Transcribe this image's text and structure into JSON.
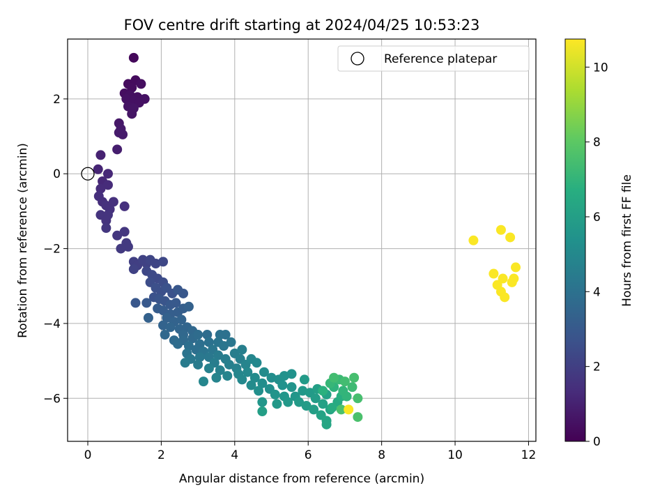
{
  "chart_data": {
    "type": "scatter",
    "title": "FOV centre drift starting at 2024/04/25 10:53:23",
    "xlabel": "Angular distance from reference (arcmin)",
    "ylabel": "Rotation from reference (arcmin)",
    "xlim": [
      -0.55,
      12.2
    ],
    "ylim": [
      -7.15,
      3.6
    ],
    "xticks": [
      0,
      2,
      4,
      6,
      8,
      10,
      12
    ],
    "yticks": [
      -6,
      -4,
      -2,
      0,
      2
    ],
    "grid": true,
    "legend": {
      "placement": "top-right",
      "entries": [
        "Reference platepar"
      ]
    },
    "reference_point": {
      "x": 0,
      "y": 0,
      "label": "Reference platepar"
    },
    "colorbar": {
      "label": "Hours from first FF file",
      "range": [
        0,
        10.75
      ],
      "ticks": [
        0,
        2,
        4,
        6,
        8,
        10
      ],
      "colormap": "viridis"
    },
    "points": [
      [
        1.25,
        3.1,
        0.2
      ],
      [
        1.1,
        2.4,
        0.3
      ],
      [
        1.3,
        2.5,
        0.3
      ],
      [
        1.45,
        2.4,
        0.4
      ],
      [
        1.2,
        2.3,
        0.35
      ],
      [
        1.0,
        2.15,
        0.4
      ],
      [
        1.15,
        2.1,
        0.45
      ],
      [
        1.35,
        2.05,
        0.45
      ],
      [
        1.55,
        2.0,
        0.5
      ],
      [
        1.05,
        2.0,
        0.5
      ],
      [
        1.25,
        1.95,
        0.5
      ],
      [
        1.4,
        1.9,
        0.5
      ],
      [
        1.1,
        1.8,
        0.55
      ],
      [
        1.25,
        1.75,
        0.6
      ],
      [
        1.2,
        1.6,
        0.6
      ],
      [
        0.85,
        1.35,
        0.7
      ],
      [
        0.9,
        1.2,
        0.75
      ],
      [
        0.85,
        1.1,
        0.8
      ],
      [
        0.95,
        1.05,
        0.8
      ],
      [
        0.8,
        0.65,
        0.9
      ],
      [
        0.35,
        0.5,
        1.0
      ],
      [
        0.28,
        0.12,
        1.1
      ],
      [
        0.55,
        0.0,
        1.2
      ],
      [
        0.4,
        -0.2,
        1.2
      ],
      [
        0.55,
        -0.3,
        1.3
      ],
      [
        0.35,
        -0.4,
        1.3
      ],
      [
        0.3,
        -0.6,
        1.4
      ],
      [
        0.4,
        -0.75,
        1.4
      ],
      [
        0.5,
        -0.85,
        1.5
      ],
      [
        0.7,
        -0.75,
        1.5
      ],
      [
        0.6,
        -0.95,
        1.5
      ],
      [
        1.0,
        -0.87,
        1.5
      ],
      [
        0.35,
        -1.1,
        1.6
      ],
      [
        0.55,
        -1.1,
        1.6
      ],
      [
        0.5,
        -1.25,
        1.6
      ],
      [
        0.5,
        -1.45,
        1.7
      ],
      [
        0.8,
        -1.65,
        1.7
      ],
      [
        1.0,
        -1.55,
        1.7
      ],
      [
        1.05,
        -1.85,
        1.8
      ],
      [
        1.1,
        -1.95,
        1.8
      ],
      [
        0.9,
        -2.0,
        1.8
      ],
      [
        1.25,
        -2.35,
        2.0
      ],
      [
        1.35,
        -2.45,
        2.0
      ],
      [
        1.5,
        -2.3,
        2.1
      ],
      [
        1.6,
        -2.4,
        2.1
      ],
      [
        1.25,
        -2.55,
        2.1
      ],
      [
        1.7,
        -2.3,
        2.2
      ],
      [
        1.85,
        -2.4,
        2.2
      ],
      [
        2.05,
        -2.35,
        2.3
      ],
      [
        1.6,
        -2.6,
        2.3
      ],
      [
        1.75,
        -2.7,
        2.4
      ],
      [
        1.9,
        -2.8,
        2.4
      ],
      [
        1.7,
        -2.9,
        2.5
      ],
      [
        2.05,
        -2.9,
        2.5
      ],
      [
        1.85,
        -3.05,
        2.6
      ],
      [
        2.0,
        -3.15,
        2.6
      ],
      [
        2.15,
        -3.05,
        2.7
      ],
      [
        2.3,
        -3.2,
        2.7
      ],
      [
        1.8,
        -3.3,
        2.7
      ],
      [
        1.95,
        -3.35,
        2.8
      ],
      [
        2.1,
        -3.4,
        2.8
      ],
      [
        2.45,
        -3.1,
        2.9
      ],
      [
        2.6,
        -3.2,
        2.9
      ],
      [
        1.3,
        -3.45,
        2.9
      ],
      [
        1.6,
        -3.45,
        3.0
      ],
      [
        2.25,
        -3.5,
        3.0
      ],
      [
        2.4,
        -3.45,
        3.0
      ],
      [
        1.9,
        -3.6,
        3.1
      ],
      [
        2.05,
        -3.65,
        3.1
      ],
      [
        2.25,
        -3.75,
        3.2
      ],
      [
        2.45,
        -3.7,
        3.2
      ],
      [
        2.6,
        -3.6,
        3.2
      ],
      [
        2.75,
        -3.55,
        3.3
      ],
      [
        1.65,
        -3.85,
        3.3
      ],
      [
        2.15,
        -3.85,
        3.3
      ],
      [
        2.35,
        -3.95,
        3.4
      ],
      [
        2.55,
        -3.9,
        3.4
      ],
      [
        2.05,
        -4.05,
        3.4
      ],
      [
        2.25,
        -4.1,
        3.5
      ],
      [
        2.5,
        -4.15,
        3.5
      ],
      [
        2.7,
        -4.1,
        3.5
      ],
      [
        2.85,
        -4.2,
        3.6
      ],
      [
        2.1,
        -4.3,
        3.6
      ],
      [
        2.6,
        -4.3,
        3.6
      ],
      [
        2.35,
        -4.45,
        3.7
      ],
      [
        2.6,
        -4.45,
        3.7
      ],
      [
        2.85,
        -4.4,
        3.7
      ],
      [
        3.0,
        -4.3,
        3.8
      ],
      [
        3.25,
        -4.3,
        3.8
      ],
      [
        2.45,
        -4.55,
        3.8
      ],
      [
        2.75,
        -4.6,
        3.9
      ],
      [
        3.05,
        -4.55,
        3.9
      ],
      [
        2.95,
        -4.7,
        3.9
      ],
      [
        3.3,
        -4.5,
        4.0
      ],
      [
        3.6,
        -4.3,
        4.0
      ],
      [
        3.75,
        -4.3,
        4.0
      ],
      [
        3.55,
        -4.5,
        4.1
      ],
      [
        2.7,
        -4.8,
        4.1
      ],
      [
        3.15,
        -4.75,
        4.1
      ],
      [
        3.4,
        -4.7,
        4.2
      ],
      [
        3.7,
        -4.6,
        4.2
      ],
      [
        3.9,
        -4.5,
        4.2
      ],
      [
        2.8,
        -4.95,
        4.3
      ],
      [
        3.05,
        -4.9,
        4.3
      ],
      [
        3.3,
        -4.9,
        4.3
      ],
      [
        3.55,
        -4.85,
        4.4
      ],
      [
        2.65,
        -5.05,
        4.4
      ],
      [
        3.0,
        -5.1,
        4.4
      ],
      [
        3.45,
        -5.05,
        4.5
      ],
      [
        3.75,
        -4.95,
        4.5
      ],
      [
        4.0,
        -4.8,
        4.5
      ],
      [
        4.2,
        -4.7,
        4.6
      ],
      [
        4.15,
        -4.95,
        4.6
      ],
      [
        3.85,
        -5.1,
        4.6
      ],
      [
        3.3,
        -5.2,
        4.7
      ],
      [
        3.6,
        -5.25,
        4.7
      ],
      [
        4.05,
        -5.2,
        4.7
      ],
      [
        4.3,
        -5.1,
        4.8
      ],
      [
        3.5,
        -5.45,
        4.8
      ],
      [
        3.8,
        -5.4,
        4.8
      ],
      [
        4.1,
        -5.35,
        4.9
      ],
      [
        3.15,
        -5.55,
        4.9
      ],
      [
        4.45,
        -4.95,
        4.9
      ],
      [
        4.6,
        -5.05,
        5.0
      ],
      [
        4.35,
        -5.3,
        5.0
      ],
      [
        4.2,
        -5.5,
        5.0
      ],
      [
        4.55,
        -5.45,
        5.1
      ],
      [
        4.8,
        -5.3,
        5.1
      ],
      [
        4.45,
        -5.65,
        5.1
      ],
      [
        4.75,
        -5.6,
        5.2
      ],
      [
        5.0,
        -5.45,
        5.2
      ],
      [
        4.65,
        -5.8,
        5.3
      ],
      [
        4.95,
        -5.75,
        5.3
      ],
      [
        5.2,
        -5.5,
        5.3
      ],
      [
        5.35,
        -5.4,
        5.4
      ],
      [
        5.55,
        -5.35,
        5.4
      ],
      [
        5.3,
        -5.65,
        5.4
      ],
      [
        5.55,
        -5.7,
        5.5
      ],
      [
        5.1,
        -5.9,
        5.5
      ],
      [
        5.35,
        -5.95,
        5.6
      ],
      [
        5.65,
        -5.95,
        5.6
      ],
      [
        4.75,
        -6.1,
        5.6
      ],
      [
        5.15,
        -6.15,
        5.7
      ],
      [
        5.45,
        -6.1,
        5.7
      ],
      [
        5.85,
        -5.8,
        5.7
      ],
      [
        5.9,
        -5.5,
        5.8
      ],
      [
        5.75,
        -6.1,
        5.8
      ],
      [
        6.05,
        -5.85,
        5.8
      ],
      [
        5.95,
        -6.2,
        5.9
      ],
      [
        6.2,
        -6.0,
        5.9
      ],
      [
        4.75,
        -6.35,
        6.0
      ],
      [
        6.25,
        -5.75,
        6.0
      ],
      [
        6.15,
        -6.3,
        6.0
      ],
      [
        6.4,
        -6.15,
        6.1
      ],
      [
        6.5,
        -5.9,
        6.1
      ],
      [
        6.35,
        -6.45,
        6.2
      ],
      [
        6.6,
        -6.3,
        6.2
      ],
      [
        6.5,
        -6.6,
        6.3
      ],
      [
        6.5,
        -6.7,
        6.3
      ],
      [
        6.8,
        -6.1,
        6.5
      ],
      [
        6.65,
        -6.25,
        6.6
      ],
      [
        6.9,
        -5.95,
        6.7
      ],
      [
        6.4,
        -5.8,
        6.8
      ],
      [
        6.7,
        -5.7,
        6.9
      ],
      [
        6.95,
        -5.8,
        7.0
      ],
      [
        7.05,
        -5.95,
        7.0
      ],
      [
        6.6,
        -5.6,
        7.1
      ],
      [
        6.85,
        -5.5,
        7.2
      ],
      [
        7.2,
        -5.7,
        7.3
      ],
      [
        6.7,
        -5.45,
        7.4
      ],
      [
        7.0,
        -5.55,
        7.4
      ],
      [
        7.25,
        -5.45,
        7.5
      ],
      [
        7.35,
        -6.0,
        7.5
      ],
      [
        6.9,
        -6.3,
        7.6
      ],
      [
        7.35,
        -6.5,
        7.6
      ],
      [
        10.5,
        -1.78,
        10.7
      ],
      [
        11.25,
        -1.5,
        10.7
      ],
      [
        11.5,
        -1.7,
        10.7
      ],
      [
        11.65,
        -2.5,
        10.7
      ],
      [
        11.05,
        -2.67,
        10.7
      ],
      [
        11.3,
        -2.8,
        10.7
      ],
      [
        11.6,
        -2.8,
        10.7
      ],
      [
        11.55,
        -2.9,
        10.7
      ],
      [
        11.15,
        -2.97,
        10.7
      ],
      [
        11.25,
        -3.15,
        10.7
      ],
      [
        11.35,
        -3.3,
        10.7
      ],
      [
        7.1,
        -6.3,
        10.7
      ]
    ]
  }
}
